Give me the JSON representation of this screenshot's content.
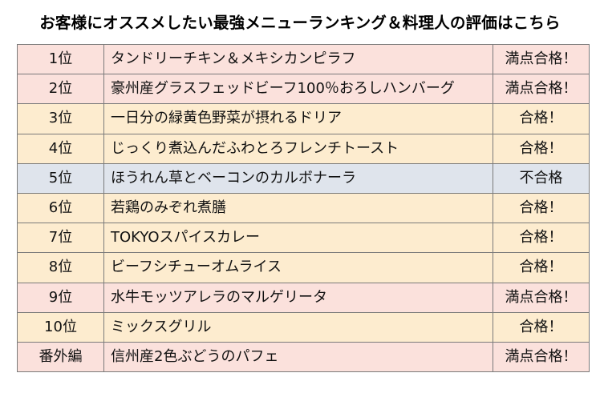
{
  "title": "お客様にオススメしたい最強メニューランキング＆料理人の評価はこちら",
  "colors": {
    "full_marks_row": "#fbe1dc",
    "pass_row": "#fdeccf",
    "fail_row": "#dfe4ec",
    "border": "#7a7a7a"
  },
  "rows": [
    {
      "rank": "1位",
      "dish": "タンドリーチキン＆メキシカンピラフ",
      "evaluation": "満点合格！",
      "status": "top"
    },
    {
      "rank": "2位",
      "dish": "豪州産グラスフェッドビーフ100％おろしハンバーグ",
      "evaluation": "満点合格！",
      "status": "top"
    },
    {
      "rank": "3位",
      "dish": "一日分の緑黄色野菜が摂れるドリア",
      "evaluation": "合格！",
      "status": "pass"
    },
    {
      "rank": "4位",
      "dish": "じっくり煮込んだふわとろフレンチトースト",
      "evaluation": "合格！",
      "status": "pass"
    },
    {
      "rank": "5位",
      "dish": "ほうれん草とベーコンのカルボナーラ",
      "evaluation": "不合格",
      "status": "fail"
    },
    {
      "rank": "6位",
      "dish": "若鶏のみぞれ煮膳",
      "evaluation": "合格！",
      "status": "pass"
    },
    {
      "rank": "7位",
      "dish": "TOKYOスパイスカレー",
      "evaluation": "合格！",
      "status": "pass"
    },
    {
      "rank": "8位",
      "dish": "ビーフシチューオムライス",
      "evaluation": "合格！",
      "status": "pass"
    },
    {
      "rank": "9位",
      "dish": "水牛モッツアレラのマルゲリータ",
      "evaluation": "満点合格！",
      "status": "top"
    },
    {
      "rank": "10位",
      "dish": "ミックスグリル",
      "evaluation": "合格！",
      "status": "pass"
    },
    {
      "rank": "番外編",
      "dish": "信州産2色ぶどうのパフェ",
      "evaluation": "満点合格！",
      "status": "top"
    }
  ]
}
